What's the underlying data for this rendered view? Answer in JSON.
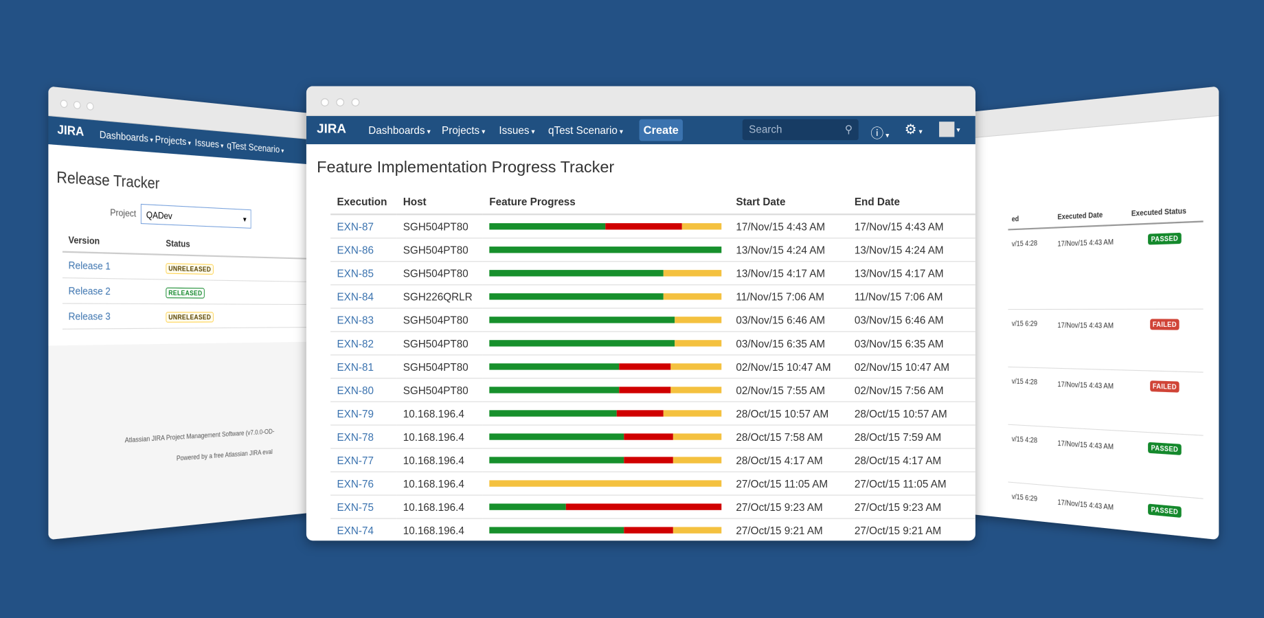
{
  "main": {
    "logo": "JIRA",
    "nav": [
      "Dashboards",
      "Projects",
      "Issues",
      "qTest Scenario"
    ],
    "create": "Create",
    "search_placeholder": "Search",
    "title": "Feature Implementation Progress Tracker",
    "columns": [
      "Execution",
      "Host",
      "Feature Progress",
      "Start Date",
      "End Date"
    ],
    "rows": [
      {
        "execution": "EXN-87",
        "host": "SGH504PT80",
        "progress": [
          50,
          33,
          17
        ],
        "start": "17/Nov/15 4:43 AM",
        "end": "17/Nov/15 4:43 AM"
      },
      {
        "execution": "EXN-86",
        "host": "SGH504PT80",
        "progress": [
          100,
          0,
          0
        ],
        "start": "13/Nov/15 4:24 AM",
        "end": "13/Nov/15 4:24 AM"
      },
      {
        "execution": "EXN-85",
        "host": "SGH504PT80",
        "progress": [
          75,
          0,
          25
        ],
        "start": "13/Nov/15 4:17 AM",
        "end": "13/Nov/15 4:17 AM"
      },
      {
        "execution": "EXN-84",
        "host": "SGH226QRLR",
        "progress": [
          75,
          0,
          25
        ],
        "start": "11/Nov/15 7:06 AM",
        "end": "11/Nov/15 7:06 AM"
      },
      {
        "execution": "EXN-83",
        "host": "SGH504PT80",
        "progress": [
          80,
          0,
          20
        ],
        "start": "03/Nov/15 6:46 AM",
        "end": "03/Nov/15 6:46 AM"
      },
      {
        "execution": "EXN-82",
        "host": "SGH504PT80",
        "progress": [
          80,
          0,
          20
        ],
        "start": "03/Nov/15 6:35 AM",
        "end": "03/Nov/15 6:35 AM"
      },
      {
        "execution": "EXN-81",
        "host": "SGH504PT80",
        "progress": [
          56,
          22,
          22
        ],
        "start": "02/Nov/15 10:47 AM",
        "end": "02/Nov/15 10:47 AM"
      },
      {
        "execution": "EXN-80",
        "host": "SGH504PT80",
        "progress": [
          56,
          22,
          22
        ],
        "start": "02/Nov/15 7:55 AM",
        "end": "02/Nov/15 7:56 AM"
      },
      {
        "execution": "EXN-79",
        "host": "10.168.196.4",
        "progress": [
          55,
          20,
          25
        ],
        "start": "28/Oct/15 10:57 AM",
        "end": "28/Oct/15 10:57 AM"
      },
      {
        "execution": "EXN-78",
        "host": "10.168.196.4",
        "progress": [
          58,
          21,
          21
        ],
        "start": "28/Oct/15 7:58 AM",
        "end": "28/Oct/15 7:59 AM"
      },
      {
        "execution": "EXN-77",
        "host": "10.168.196.4",
        "progress": [
          58,
          21,
          21
        ],
        "start": "28/Oct/15 4:17 AM",
        "end": "28/Oct/15 4:17 AM"
      },
      {
        "execution": "EXN-76",
        "host": "10.168.196.4",
        "progress": [
          0,
          0,
          100
        ],
        "start": "27/Oct/15 11:05 AM",
        "end": "27/Oct/15 11:05 AM"
      },
      {
        "execution": "EXN-75",
        "host": "10.168.196.4",
        "progress": [
          33,
          67,
          0
        ],
        "start": "27/Oct/15 9:23 AM",
        "end": "27/Oct/15 9:23 AM"
      },
      {
        "execution": "EXN-74",
        "host": "10.168.196.4",
        "progress": [
          58,
          21,
          21
        ],
        "start": "27/Oct/15 9:21 AM",
        "end": "27/Oct/15 9:21 AM"
      }
    ]
  },
  "left": {
    "logo": "JIRA",
    "nav": [
      "Dashboards",
      "Projects",
      "Issues",
      "qTest Scenario"
    ],
    "title": "Release Tracker",
    "project_label": "Project",
    "project_value": "QADev",
    "columns": [
      "Version",
      "Status"
    ],
    "rows": [
      {
        "version": "Release 1",
        "status": "UNRELEASED"
      },
      {
        "version": "Release 2",
        "status": "RELEASED"
      },
      {
        "version": "Release 3",
        "status": "UNRELEASED"
      }
    ],
    "footer": [
      "Atlassian JIRA Project Management Software (v7.0.0-OD-",
      "Powered by a free Atlassian JIRA eval"
    ]
  },
  "right": {
    "columns": [
      "ed",
      "Executed Date",
      "Executed Status"
    ],
    "rows": [
      {
        "partial": "v/15 4:28",
        "date": "17/Nov/15 4:43 AM",
        "status": "PASSED"
      },
      {
        "partial": "v/15 6:29",
        "date": "17/Nov/15 4:43 AM",
        "status": "FAILED"
      },
      {
        "partial": "v/15 4:28",
        "date": "17/Nov/15 4:43 AM",
        "status": "FAILED"
      },
      {
        "partial": "v/15 4:28",
        "date": "17/Nov/15 4:43 AM",
        "status": "PASSED"
      },
      {
        "partial": "v/15 6:29",
        "date": "17/Nov/15 4:43 AM",
        "status": "PASSED"
      }
    ]
  }
}
